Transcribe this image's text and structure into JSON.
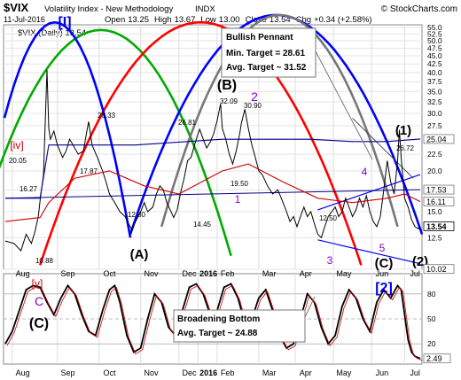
{
  "header": {
    "symbol": "$VIX",
    "name": "Volatility Index - New Methodology",
    "exchange": "INDX",
    "brand": "© StockCharts.com",
    "date": "11-Jul-2016",
    "ohlc": {
      "open_label": "Open",
      "open": "13.25",
      "high_label": "High",
      "high": "13.67",
      "low_label": "Low",
      "low": "13.00",
      "close_label": "Close",
      "close": "13.54",
      "chg_label": "Chg",
      "chg": "+0.34 (+2.58%)"
    },
    "legend_text": "$VIX (Daily) 13.54"
  },
  "colors": {
    "price": "#000000",
    "ma_blue": "#00008b",
    "ma_red": "#cc0000",
    "cycle_green": "#00aa00",
    "cycle_red": "#ff0000",
    "cycle_blue": "#0000ff",
    "cycle_gray": "#777777",
    "wave_purple": "#8800cc",
    "wave_blue": "#0000dd",
    "wave_red": "#cc0000",
    "close_tag": "#000000"
  },
  "chart_data": [
    {
      "type": "line",
      "title": "$VIX Volatility Index - New Methodology INDX",
      "x_tick_labels": [
        "Aug",
        "Sep",
        "Oct",
        "Nov",
        "Dec",
        "2016",
        "Feb",
        "Mar",
        "Apr",
        "May",
        "Jun",
        "Jul"
      ],
      "y_tick_labels": [
        "10.0",
        "12.5",
        "15.0",
        "17.5",
        "20.0",
        "22.5",
        "25.0",
        "27.5",
        "30.0",
        "32.5",
        "35.0",
        "37.5",
        "40.0",
        "42.5",
        "45.0",
        "47.5",
        "50.0",
        "52.5",
        "55.0"
      ],
      "ylim": [
        10,
        56
      ],
      "y_scale": "log",
      "series": [
        {
          "name": "$VIX (Daily) 13.54",
          "points": [
            [
              0,
              12.2
            ],
            [
              5,
              12.0
            ],
            [
              9,
              11.4
            ],
            [
              12,
              12.8
            ],
            [
              15,
              12.0
            ],
            [
              17,
              13.0
            ],
            [
              19,
              14.5
            ],
            [
              20,
              16.2
            ],
            [
              22,
              19.5
            ],
            [
              23,
              28.0
            ],
            [
              24,
              40.7
            ],
            [
              25,
              27.0
            ],
            [
              26,
              25.0
            ],
            [
              28,
              26.5
            ],
            [
              30,
              24.0
            ],
            [
              33,
              22.0
            ],
            [
              35,
              23.0
            ],
            [
              37,
              25.0
            ],
            [
              39,
              24.0
            ],
            [
              42,
              22.5
            ],
            [
              45,
              23.0
            ],
            [
              47,
              26.5
            ],
            [
              48,
              28.3
            ],
            [
              50,
              24.0
            ],
            [
              53,
              22.0
            ],
            [
              56,
              20.0
            ],
            [
              58,
              18.5
            ],
            [
              60,
              17.0
            ],
            [
              63,
              16.0
            ],
            [
              66,
              15.0
            ],
            [
              69,
              14.5
            ],
            [
              71,
              13.8
            ],
            [
              73,
              13.2
            ],
            [
              75,
              14.0
            ],
            [
              78,
              15.0
            ],
            [
              80,
              16.0
            ],
            [
              82,
              15.0
            ],
            [
              85,
              15.5
            ],
            [
              87,
              17.0
            ],
            [
              89,
              18.0
            ],
            [
              91,
              17.5
            ],
            [
              93,
              16.0
            ],
            [
              95,
              15.2
            ],
            [
              97,
              14.4
            ],
            [
              99,
              15.2
            ],
            [
              101,
              17.2
            ],
            [
              103,
              19.0
            ],
            [
              105,
              21.5
            ],
            [
              107,
              22.0
            ],
            [
              109,
              24.0
            ],
            [
              111,
              26.0
            ],
            [
              112,
              26.81
            ],
            [
              114,
              25.0
            ],
            [
              116,
              23.5
            ],
            [
              118,
              24.5
            ],
            [
              120,
              26.0
            ],
            [
              122,
              28.5
            ],
            [
              124,
              32.09
            ],
            [
              125,
              27.0
            ],
            [
              127,
              25.0
            ],
            [
              129,
              22.5
            ],
            [
              131,
              21.0
            ],
            [
              133,
              23.0
            ],
            [
              135,
              26.0
            ],
            [
              136,
              28.0
            ],
            [
              138,
              30.9
            ],
            [
              140,
              27.0
            ],
            [
              142,
              24.0
            ],
            [
              144,
              22.0
            ],
            [
              146,
              20.0
            ],
            [
              148,
              19.5
            ],
            [
              151,
              18.0
            ],
            [
              154,
              17.0
            ],
            [
              157,
              17.5
            ],
            [
              160,
              16.0
            ],
            [
              162,
              15.0
            ],
            [
              164,
              14.0
            ],
            [
              166,
              14.5
            ],
            [
              168,
              13.5
            ],
            [
              170,
              14.5
            ],
            [
              172,
              15.5
            ],
            [
              174,
              14.5
            ],
            [
              176,
              15.0
            ],
            [
              178,
              13.8
            ],
            [
              180,
              12.8
            ],
            [
              182,
              12.5
            ],
            [
              184,
              13.5
            ],
            [
              186,
              14.5
            ],
            [
              188,
              15.0
            ],
            [
              190,
              15.5
            ],
            [
              192,
              14.5
            ],
            [
              194,
              15.0
            ],
            [
              196,
              16.5
            ],
            [
              198,
              15.5
            ],
            [
              200,
              14.5
            ],
            [
              202,
              15.2
            ],
            [
              204,
              16.5
            ],
            [
              206,
              15.5
            ],
            [
              208,
              16.8
            ],
            [
              210,
              15.0
            ],
            [
              212,
              14.0
            ],
            [
              214,
              13.5
            ],
            [
              216,
              14.5
            ],
            [
              218,
              17.5
            ],
            [
              220,
              21.5
            ],
            [
              222,
              18.5
            ],
            [
              224,
              17.0
            ],
            [
              226,
              21.5
            ],
            [
              227,
              26.72
            ],
            [
              228,
              22.0
            ],
            [
              230,
              16.5
            ],
            [
              232,
              15.5
            ],
            [
              234,
              14.2
            ],
            [
              236,
              13.5
            ],
            [
              238,
              13.3
            ],
            [
              239,
              13.54
            ]
          ]
        },
        {
          "name": "",
          "points": [
            [
              0,
              16.5
            ],
            [
              20,
              16.5
            ],
            [
              25,
              24.0
            ],
            [
              50,
              24.0
            ],
            [
              75,
              24.0
            ],
            [
              100,
              24.5
            ],
            [
              125,
              25.0
            ],
            [
              150,
              25.0
            ],
            [
              175,
              25.0
            ],
            [
              200,
              24.6
            ],
            [
              220,
              24.6
            ],
            [
              239,
              25.04
            ]
          ]
        },
        {
          "name": "",
          "points": [
            [
              0,
              14.0
            ],
            [
              20,
              14.4
            ],
            [
              25,
              16.0
            ],
            [
              40,
              19.0
            ],
            [
              60,
              20.0
            ],
            [
              80,
              18.0
            ],
            [
              100,
              17.0
            ],
            [
              125,
              20.0
            ],
            [
              140,
              21.0
            ],
            [
              160,
              18.5
            ],
            [
              180,
              16.5
            ],
            [
              200,
              16.0
            ],
            [
              220,
              16.5
            ],
            [
              230,
              17.0
            ],
            [
              239,
              16.11
            ]
          ]
        }
      ],
      "annotations": [
        "[I]",
        "[iv]",
        "20.05",
        "16.27",
        "10.88",
        "28.33",
        "17.87",
        "12.80",
        "(A)",
        "14.45",
        "26.81",
        "32.09",
        "(B)",
        "2",
        "30.90",
        "19.50",
        "1",
        "12.50",
        "3",
        "4",
        "5",
        "(C)",
        "(1)",
        "26.72",
        "(2)",
        "Bullish Pennant",
        "Min. Target = 28.61",
        "Avg. Target ~ 31.52"
      ],
      "last_values": [
        "25.04",
        "17.53",
        "16.11",
        "13.54",
        "10.02"
      ]
    },
    {
      "type": "line",
      "title": "",
      "x_tick_labels": [
        "Aug",
        "Sep",
        "Oct",
        "Nov",
        "Dec",
        "2016",
        "Feb",
        "Mar",
        "Apr",
        "May",
        "Jun",
        "Jul"
      ],
      "y_tick_labels": [
        "20",
        "50",
        "80"
      ],
      "ylim": [
        0,
        100
      ],
      "series": [
        {
          "name": "",
          "points": [
            [
              0,
              20
            ],
            [
              4,
              35
            ],
            [
              8,
              60
            ],
            [
              12,
              85
            ],
            [
              16,
              90
            ],
            [
              20,
              88
            ],
            [
              24,
              70
            ],
            [
              28,
              55
            ],
            [
              32,
              75
            ],
            [
              36,
              90
            ],
            [
              40,
              80
            ],
            [
              44,
              55
            ],
            [
              48,
              35
            ],
            [
              52,
              30
            ],
            [
              56,
              60
            ],
            [
              60,
              85
            ],
            [
              63,
              90
            ],
            [
              66,
              70
            ],
            [
              70,
              30
            ],
            [
              74,
              10
            ],
            [
              78,
              15
            ],
            [
              82,
              50
            ],
            [
              86,
              80
            ],
            [
              90,
              70
            ],
            [
              94,
              40
            ],
            [
              98,
              30
            ],
            [
              102,
              60
            ],
            [
              106,
              88
            ],
            [
              110,
              92
            ],
            [
              114,
              80
            ],
            [
              118,
              55
            ],
            [
              122,
              60
            ],
            [
              126,
              88
            ],
            [
              130,
              92
            ],
            [
              134,
              75
            ],
            [
              138,
              45
            ],
            [
              142,
              50
            ],
            [
              146,
              75
            ],
            [
              150,
              85
            ],
            [
              154,
              60
            ],
            [
              158,
              30
            ],
            [
              162,
              15
            ],
            [
              166,
              20
            ],
            [
              170,
              50
            ],
            [
              174,
              80
            ],
            [
              178,
              70
            ],
            [
              182,
              40
            ],
            [
              186,
              20
            ],
            [
              190,
              30
            ],
            [
              194,
              65
            ],
            [
              198,
              85
            ],
            [
              202,
              75
            ],
            [
              206,
              50
            ],
            [
              210,
              35
            ],
            [
              214,
              70
            ],
            [
              218,
              85
            ],
            [
              222,
              75
            ],
            [
              226,
              90
            ],
            [
              228,
              85
            ],
            [
              230,
              55
            ],
            [
              232,
              25
            ],
            [
              234,
              10
            ],
            [
              236,
              5
            ],
            [
              239,
              2.49
            ]
          ]
        }
      ],
      "annotations": [
        "[v]",
        "C",
        "(C)",
        "[2]",
        "Broadening Bottom",
        "Avg. Target ~ 24.88"
      ],
      "last_values": [
        "2.49"
      ]
    }
  ]
}
